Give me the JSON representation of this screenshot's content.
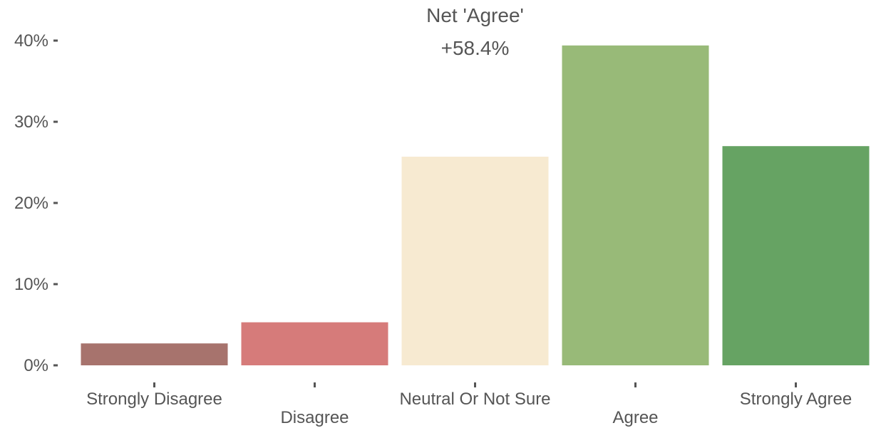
{
  "chart_data": {
    "type": "bar",
    "categories": [
      "Strongly Disagree",
      "Disagree",
      "Neutral Or Not Sure",
      "Agree",
      "Strongly Agree"
    ],
    "values": [
      2.7,
      5.3,
      25.7,
      39.4,
      27.0
    ],
    "colors": [
      "#a7736d",
      "#d67b7a",
      "#f7ead1",
      "#98ba78",
      "#66a363"
    ],
    "ylim": [
      0,
      40
    ],
    "y_ticks": [
      0,
      10,
      20,
      30,
      40
    ],
    "y_tick_labels": [
      "0%",
      "10%",
      "20%",
      "30%",
      "40%"
    ],
    "title": "",
    "xlabel": "",
    "ylabel": "",
    "grid": false,
    "annotation": {
      "line1": "Net 'Agree'",
      "line2": "+58.4%"
    }
  }
}
